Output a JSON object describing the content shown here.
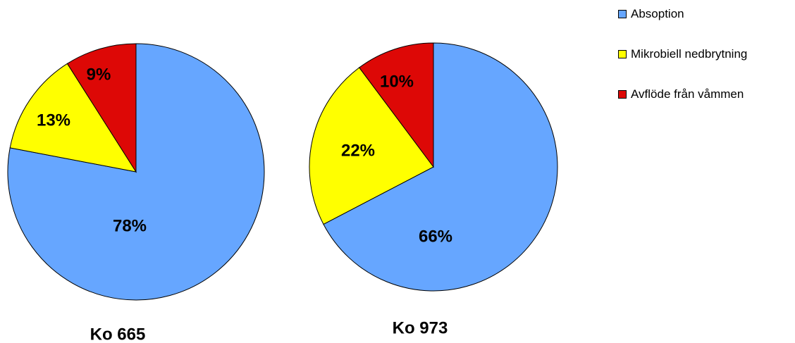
{
  "chart_data": [
    {
      "type": "pie",
      "title": "Ko 665",
      "categories": [
        "Absoption",
        "Mikrobiell nedbrytning",
        "Avflöde från våmmen"
      ],
      "values": [
        78,
        13,
        9
      ],
      "labels": [
        "78%",
        "13%",
        "9%"
      ],
      "colors": [
        "#66A6FF",
        "#FFFF00",
        "#DD0806"
      ]
    },
    {
      "type": "pie",
      "title": "Ko 973",
      "categories": [
        "Absoption",
        "Mikrobiell nedbrytning",
        "Avflöde från våmmen"
      ],
      "values": [
        66,
        22,
        10
      ],
      "labels": [
        "66%",
        "22%",
        "10%"
      ],
      "colors": [
        "#66A6FF",
        "#FFFF00",
        "#DD0806"
      ]
    }
  ],
  "legend": {
    "placement": "top-right",
    "items": [
      {
        "label": "Absoption",
        "color": "#66A6FF"
      },
      {
        "label": "Mikrobiell nedbrytning",
        "color": "#FFFF00"
      },
      {
        "label": "Avflöde från våmmen",
        "color": "#DD0806"
      }
    ]
  }
}
